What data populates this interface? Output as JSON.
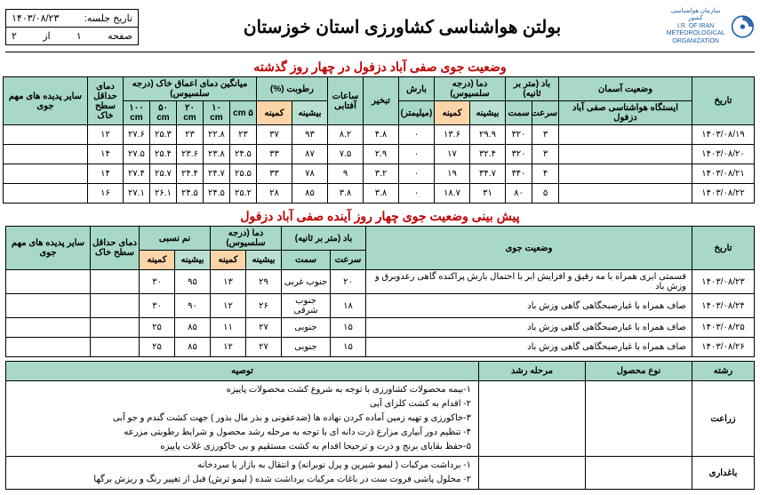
{
  "header": {
    "logo_org_fa": "سازمان هواشناسی کشور",
    "logo_org_en1": "I.R. OF IRAN",
    "logo_org_en2": "METEOROLOGICAL ORGANIZATION",
    "title": "بولتن هواشناسی کشاورزی استان خوزستان",
    "session_date_label": "تاریخ جلسه:",
    "session_date": "۱۴۰۳/۰۸/۲۳",
    "page_label": "صفحه",
    "page_num": "۱",
    "page_of": "از",
    "page_total": "۲"
  },
  "past": {
    "title": "وضعیت جوی صفی آباد دزفول در چهار روز گذشته",
    "cols": {
      "date": "تاریخ",
      "sky": "وضعیت آسمان",
      "station": "ایستگاه هواشناسی صفی آباد دزفول",
      "wind": "باد (متر بر ثانیه)",
      "wind_speed": "سرعت",
      "wind_dir": "سمت",
      "temp": "دما (درجه سلسیوس)",
      "max": "بیشینه",
      "min": "کمینه",
      "rain": "بارش",
      "mm": "(میلیمتر)",
      "evap": "تبخیر",
      "sun": "ساعات آفتابی",
      "hum": "رطوبت (%)",
      "soil": "میانگین دمای اعماق خاک (درجه سلسیوس)",
      "d5": "۵ cm",
      "d10": "۱۰ cm",
      "d20": "۲۰ cm",
      "d50": "۵۰ cm",
      "d100": "۱۰۰ cm",
      "surf_min": "دمای حداقل سطح خاک",
      "phen": "سایر پدیده های مهم جوی"
    },
    "rows": [
      {
        "date": "۱۴۰۳/۰۸/۱۹",
        "ws": "۳",
        "wd": "۳۲۰",
        "tmax": "۲۹.۹",
        "tmin": "۱۳.۶",
        "rain": "۰",
        "evap": "۴.۸",
        "sun": "۸.۲",
        "hmax": "۹۳",
        "hmin": "۳۷",
        "s5": "۲۳",
        "s10": "۲۲.۸",
        "s20": "۲۳",
        "s50": "۲۵.۳",
        "s100": "۲۷.۶",
        "surf": "۱۲",
        "phen": ""
      },
      {
        "date": "۱۴۰۳/۰۸/۲۰",
        "ws": "۳",
        "wd": "۳۲۰",
        "tmax": "۳۲.۴",
        "tmin": "۱۷",
        "rain": "۰",
        "evap": "۲.۹",
        "sun": "۷.۵",
        "hmax": "۸۷",
        "hmin": "۳۳",
        "s5": "۲۴.۵",
        "s10": "۲۳.۸",
        "s20": "۲۳.۶",
        "s50": "۲۵.۴",
        "s100": "۲۷.۵",
        "surf": "۱۴",
        "phen": ""
      },
      {
        "date": "۱۴۰۳/۰۸/۲۱",
        "ws": "۴",
        "wd": "۳۴۰",
        "tmax": "۳۴.۷",
        "tmin": "۱۹",
        "rain": "۰",
        "evap": "۳.۲",
        "sun": "۹",
        "hmax": "۷۸",
        "hmin": "۳۳",
        "s5": "۲۵.۵",
        "s10": "۲۴.۷",
        "s20": "۲۴.۴",
        "s50": "۲۵.۷",
        "s100": "۲۷.۴",
        "surf": "۱۴",
        "phen": ""
      },
      {
        "date": "۱۴۰۳/۰۸/۲۲",
        "ws": "۵",
        "wd": "۸۰",
        "tmax": "۳۱",
        "tmin": "۱۸.۷",
        "rain": "۰",
        "evap": "۳.۸",
        "sun": "۳.۸",
        "hmax": "۸۵",
        "hmin": "۲۸",
        "s5": "۲۵.۲",
        "s10": "۲۴.۵",
        "s20": "۲۴.۵",
        "s50": "۲۶.۱",
        "s100": "۲۷.۱",
        "surf": "۱۶",
        "phen": ""
      }
    ]
  },
  "forecast": {
    "title": "پیش بینی وضعیت جوی چهار روز آینده صفی آباد دزفول",
    "cols": {
      "date": "تاریخ",
      "cond": "وضعیت جوی",
      "wind": "باد (متر بر ثانیه)",
      "wind_speed": "سرعت",
      "wind_dir": "سمت",
      "temp": "دما (درجه سلسیوس)",
      "max": "بیشینه",
      "min": "کمینه",
      "rh": "نم نسبی",
      "surf_min": "دمای حداقل سطح خاک",
      "phen": "سایر پدیده های مهم جوی"
    },
    "rows": [
      {
        "date": "۱۴۰۳/۰۸/۲۳",
        "cond": "قسمتی ابری همراه با مه رقیق و افزایش ابر با احتمال بارش پراکنده گاهی رعدوبرق و وزش باد",
        "ws": "۲۰",
        "wd": "جنوب غربی",
        "tmax": "۲۹",
        "tmin": "۱۳",
        "hmax": "۹۵",
        "hmin": "۳۰",
        "surf": "",
        "phen": ""
      },
      {
        "date": "۱۴۰۳/۰۸/۲۴",
        "cond": "صاف همراه با غبارصبحگاهی گاهی وزش باد",
        "ws": "۱۸",
        "wd": "جنوب شرقی",
        "tmax": "۲۶",
        "tmin": "۱۲",
        "hmax": "۹۰",
        "hmin": "۳۰",
        "surf": "",
        "phen": ""
      },
      {
        "date": "۱۴۰۳/۰۸/۲۵",
        "cond": "صاف همراه با غبارصبحگاهی گاهی وزش باد",
        "ws": "۱۵",
        "wd": "جنوبی",
        "tmax": "۲۷",
        "tmin": "۱۱",
        "hmax": "۸۵",
        "hmin": "۲۵",
        "surf": "",
        "phen": ""
      },
      {
        "date": "۱۴۰۳/۰۸/۲۶",
        "cond": "صاف همراه با غبارصبحگاهی گاهی وزش باد",
        "ws": "۱۵",
        "wd": "جنوبی",
        "tmax": "۲۷",
        "tmin": "۱۲",
        "hmax": "۸۵",
        "hmin": "۲۵",
        "surf": "",
        "phen": ""
      }
    ]
  },
  "advice": {
    "cols": {
      "field": "رشته",
      "crop": "نوع محصول",
      "stage": "مرحله رشد",
      "rec": "توصیه"
    },
    "rows": [
      {
        "field": "زراعت",
        "crop": "",
        "stage": "",
        "rec": "۱-بیمه محصولات کشاورزی با توجه به شروع کشت محصولات پاییزه\n۲- اقدام به کشت کلزای آبی\n۳-خاکورزی و تهیه زمین  آماده کردن نهاده ها (ضدعفونی و بذر مال بذور ) جهت کشت گندم و  جو  آبی\n۴- تنظیم دور آبیاری مزارع ذرت دانه ای با توجه به مرحله رشد محصول و شرایط رطوبتی مزرعه\n۵-حفظ بقایای برنج و ذرت و ترجیحا اقدام به کشت مستقیم و بی خاکورزی غلات پاییزه"
      },
      {
        "field": "باغداری",
        "crop": "",
        "stage": "",
        "rec": "۱- برداشت مرکبات ( لیمو شیرین و پرل نوبرانه)   و انتقال به بازار یا سردخانه\n۲- محلول پاشی فروت ست در باغات مرکبات برداشت شده ( لیمو ترش) قبل از تغییر رنگ و ریزش برگها"
      }
    ]
  }
}
